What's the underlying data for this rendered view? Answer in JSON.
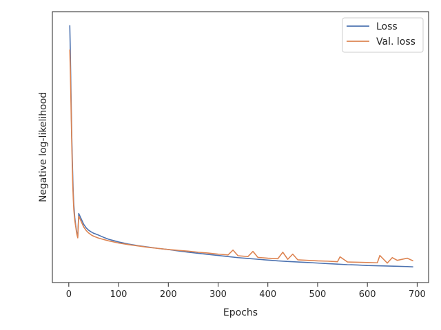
{
  "chart_data": {
    "type": "line",
    "title": "",
    "xlabel": "Epochs",
    "ylabel": "Negative log-likelihood",
    "xlim": [
      -33,
      723
    ],
    "xticks": [
      0,
      100,
      200,
      300,
      400,
      500,
      600,
      700
    ],
    "ylim": [
      0,
      100
    ],
    "yticks": [],
    "grid": false,
    "legend_position": "top-right",
    "series": [
      {
        "name": "Loss",
        "color": "#4c72b0",
        "x": [
          2,
          3,
          4,
          5,
          6,
          7,
          8,
          9,
          10,
          12,
          14,
          16,
          18,
          20,
          25,
          30,
          35,
          40,
          45,
          50,
          60,
          70,
          80,
          90,
          100,
          120,
          140,
          160,
          180,
          200,
          220,
          240,
          260,
          280,
          300,
          320,
          340,
          360,
          380,
          400,
          420,
          440,
          460,
          480,
          500,
          520,
          540,
          560,
          580,
          600,
          620,
          640,
          660,
          680,
          692
        ],
        "y": [
          95,
          86,
          75,
          64,
          54,
          46,
          39,
          33,
          29,
          24,
          21,
          18.5,
          17,
          25.5,
          23.5,
          21.5,
          20.2,
          19.3,
          18.7,
          18.2,
          17.5,
          16.7,
          16,
          15.5,
          15,
          14.2,
          13.6,
          13.1,
          12.6,
          12.2,
          11.7,
          11.2,
          10.8,
          10.4,
          10,
          9.6,
          9.2,
          8.9,
          8.6,
          8.3,
          8,
          7.8,
          7.6,
          7.4,
          7.2,
          7,
          6.8,
          6.6,
          6.5,
          6.3,
          6.2,
          6.1,
          6,
          5.9,
          5.8
        ]
      },
      {
        "name": "Val. loss",
        "color": "#dd8452",
        "x": [
          2,
          3,
          4,
          5,
          6,
          7,
          8,
          9,
          10,
          12,
          14,
          16,
          18,
          20,
          25,
          30,
          35,
          40,
          45,
          50,
          60,
          70,
          80,
          90,
          100,
          120,
          140,
          160,
          180,
          200,
          220,
          240,
          260,
          280,
          300,
          320,
          330,
          340,
          360,
          370,
          380,
          400,
          420,
          430,
          440,
          450,
          460,
          480,
          500,
          520,
          540,
          545,
          560,
          580,
          600,
          620,
          625,
          640,
          650,
          660,
          680,
          692
        ],
        "y": [
          86,
          79,
          70,
          60,
          51,
          43,
          36,
          31,
          27,
          23,
          20.5,
          18,
          16.5,
          24.5,
          22.5,
          20.5,
          19.2,
          18.3,
          17.6,
          17.1,
          16.4,
          15.9,
          15.4,
          15,
          14.6,
          14,
          13.5,
          13,
          12.6,
          12.2,
          11.9,
          11.6,
          11.2,
          10.9,
          10.5,
          10.2,
          12,
          9.9,
          9.6,
          11.5,
          9.3,
          9,
          8.8,
          11.2,
          8.6,
          10.5,
          8.4,
          8.2,
          8,
          7.9,
          7.7,
          9.5,
          7.6,
          7.5,
          7.4,
          7.3,
          10,
          7.2,
          9.2,
          8.2,
          9,
          8
        ]
      }
    ]
  }
}
